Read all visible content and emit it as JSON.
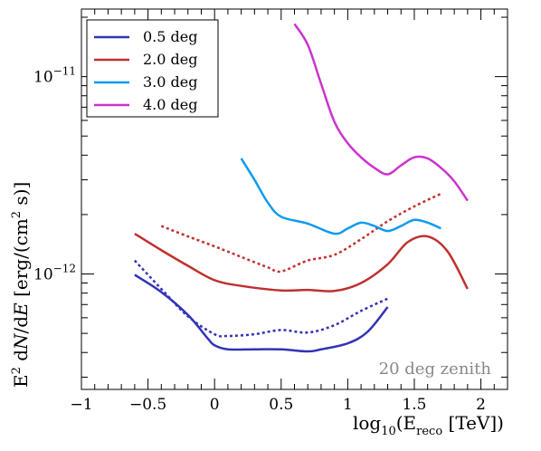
{
  "chart_data": {
    "type": "line",
    "xlabel": "log10(Ereco [TeV])",
    "ylabel": "E2 dN/dE [erg/(cm2 s)]",
    "xlim": [
      -1,
      2.2
    ],
    "ylim": [
      2.6e-13,
      2.2e-11
    ],
    "yscale": "log",
    "x_ticks": [
      "−1",
      "−0.5",
      "0",
      "0.5",
      "1",
      "1.5",
      "2"
    ],
    "y_ticks": [
      {
        "value": 1e-12,
        "base": "10",
        "exp": "−12"
      },
      {
        "value": 1e-11,
        "base": "10",
        "exp": "−11"
      }
    ],
    "legend_position": "top-left",
    "annotation": "20 deg zenith",
    "series": [
      {
        "name": "0.5 deg",
        "color": "#3232b8",
        "style": "solid",
        "x": [
          -0.6,
          -0.4,
          -0.2,
          -0.05,
          0,
          0.1,
          0.3,
          0.5,
          0.7,
          0.8,
          1.0,
          1.15,
          1.3
        ],
        "y": [
          9.9e-13,
          8.1e-13,
          6.2e-13,
          4.7e-13,
          4.35e-13,
          4.15e-13,
          4.15e-13,
          4.15e-13,
          4.05e-13,
          4.15e-13,
          4.45e-13,
          5.1e-13,
          6.8e-13
        ]
      },
      {
        "name": "0.5 deg",
        "color": "#3232b8",
        "style": "dotted",
        "x": [
          -0.6,
          -0.4,
          -0.2,
          0,
          0.1,
          0.3,
          0.5,
          0.7,
          0.9,
          1.1,
          1.3
        ],
        "y": [
          1.17e-12,
          8.4e-13,
          6.1e-13,
          4.95e-13,
          4.85e-13,
          4.95e-13,
          5.2e-13,
          5.05e-13,
          5.5e-13,
          6.5e-13,
          7.5e-13
        ]
      },
      {
        "name": "2.0 deg",
        "color": "#c03030",
        "style": "solid",
        "x": [
          -0.6,
          -0.4,
          -0.2,
          0,
          0.2,
          0.5,
          0.7,
          0.9,
          1.1,
          1.3,
          1.45,
          1.6,
          1.75,
          1.9
        ],
        "y": [
          1.6e-12,
          1.32e-12,
          1.1e-12,
          9.3e-13,
          8.7e-13,
          8.25e-13,
          8.3e-13,
          8.2e-13,
          9e-13,
          1.12e-12,
          1.45e-12,
          1.55e-12,
          1.3e-12,
          8.4e-13
        ]
      },
      {
        "name": "2.0 deg",
        "color": "#c03030",
        "style": "dotted",
        "x": [
          -0.4,
          -0.2,
          0,
          0.2,
          0.4,
          0.5,
          0.7,
          0.9,
          1.1,
          1.3,
          1.5,
          1.7
        ],
        "y": [
          1.75e-12,
          1.55e-12,
          1.38e-12,
          1.22e-12,
          1.08e-12,
          1.03e-12,
          1.17e-12,
          1.25e-12,
          1.5e-12,
          1.85e-12,
          2.2e-12,
          2.55e-12
        ]
      },
      {
        "name": "3.0 deg",
        "color": "#0d9bef",
        "style": "solid",
        "x": [
          0.2,
          0.3,
          0.4,
          0.5,
          0.7,
          0.9,
          1.0,
          1.1,
          1.2,
          1.3,
          1.4,
          1.5,
          1.6,
          1.7
        ],
        "y": [
          3.85e-12,
          3e-12,
          2.3e-12,
          1.95e-12,
          1.8e-12,
          1.6e-12,
          1.7e-12,
          1.82e-12,
          1.75e-12,
          1.65e-12,
          1.75e-12,
          1.88e-12,
          1.82e-12,
          1.7e-12
        ]
      },
      {
        "name": "4.0 deg",
        "color": "#cc33cc",
        "style": "solid",
        "x": [
          0.6,
          0.7,
          0.8,
          0.9,
          1.0,
          1.1,
          1.2,
          1.3,
          1.4,
          1.5,
          1.6,
          1.7,
          1.8,
          1.9
        ],
        "y": [
          1.85e-11,
          1.45e-11,
          9.2e-12,
          5.9e-12,
          4.6e-12,
          3.9e-12,
          3.45e-12,
          3.2e-12,
          3.55e-12,
          3.9e-12,
          3.85e-12,
          3.45e-12,
          2.95e-12,
          2.35e-12
        ]
      }
    ],
    "legend": [
      {
        "name": "0.5 deg",
        "color": "#3232b8"
      },
      {
        "name": "2.0 deg",
        "color": "#c03030"
      },
      {
        "name": "3.0 deg",
        "color": "#0d9bef"
      },
      {
        "name": "4.0 deg",
        "color": "#cc33cc"
      }
    ]
  }
}
